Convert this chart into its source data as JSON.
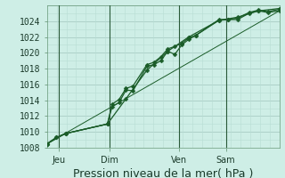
{
  "xlabel": "Pression niveau de la mer( hPa )",
  "bg_color": "#ceeee6",
  "plot_bg_color": "#ceeee6",
  "grid_minor_color": "#b8ddd4",
  "grid_major_color": "#a8ccc4",
  "line_color": "#1a5c28",
  "vline_color": "#2a5a38",
  "ylim": [
    1008,
    1026
  ],
  "xlim": [
    0,
    1
  ],
  "yticks": [
    1008,
    1010,
    1012,
    1014,
    1016,
    1018,
    1020,
    1022,
    1024
  ],
  "xtick_labels": [
    "Jeu",
    "Dim",
    "Ven",
    "Sam"
  ],
  "xtick_positions": [
    0.05,
    0.27,
    0.57,
    0.77
  ],
  "vline_positions": [
    0.05,
    0.27,
    0.57,
    0.77
  ],
  "line1_x": [
    0.0,
    0.04,
    0.08,
    0.26,
    0.28,
    0.31,
    0.34,
    0.37,
    0.43,
    0.46,
    0.49,
    0.52,
    0.55,
    0.58,
    0.61,
    0.64,
    0.74,
    0.78,
    0.82,
    0.87,
    0.91,
    0.95,
    1.0
  ],
  "line1_y": [
    1008.5,
    1009.3,
    1009.8,
    1011.0,
    1013.2,
    1013.7,
    1015.3,
    1015.2,
    1018.3,
    1018.5,
    1019.0,
    1020.2,
    1019.8,
    1021.0,
    1021.7,
    1022.2,
    1024.1,
    1024.2,
    1024.2,
    1025.0,
    1025.3,
    1025.1,
    1025.3
  ],
  "line2_x": [
    0.0,
    0.04,
    0.08,
    0.26,
    0.28,
    0.31,
    0.34,
    0.37,
    0.43,
    0.46,
    0.49,
    0.52,
    0.55,
    0.58,
    0.61,
    0.64,
    0.74,
    0.78,
    0.82,
    0.87,
    0.91,
    0.95,
    1.0
  ],
  "line2_y": [
    1008.5,
    1009.3,
    1009.8,
    1011.0,
    1013.5,
    1014.1,
    1015.5,
    1015.8,
    1018.5,
    1018.8,
    1019.5,
    1020.5,
    1020.8,
    1021.2,
    1021.9,
    1022.2,
    1024.2,
    1024.2,
    1024.4,
    1025.1,
    1025.4,
    1025.2,
    1025.5
  ],
  "line3_x": [
    0.0,
    0.08,
    0.26,
    0.34,
    0.43,
    0.52,
    0.61,
    0.74,
    0.82,
    0.91,
    1.0
  ],
  "line3_y": [
    1008.5,
    1009.8,
    1011.0,
    1014.2,
    1017.8,
    1020.2,
    1022.0,
    1024.1,
    1024.5,
    1025.3,
    1025.6
  ],
  "line4_x": [
    0.0,
    1.0
  ],
  "line4_y": [
    1008.5,
    1025.3
  ],
  "marker": "D",
  "marker_size": 2.5,
  "line_width": 0.9,
  "fontsize_xlabel": 9,
  "fontsize_yticks": 7,
  "fontsize_xticks": 7
}
